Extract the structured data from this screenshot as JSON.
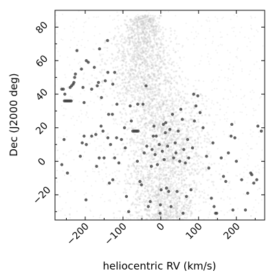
{
  "chart_data": {
    "type": "scatter",
    "title": "",
    "xlabel": "heliocentric RV (km/s)",
    "ylabel": "Dec (J2000 deg)",
    "xlim": [
      -280,
      275
    ],
    "ylim": [
      -35,
      90
    ],
    "xticks": [
      -200,
      -100,
      0,
      100,
      200
    ],
    "xtick_labels": [
      "−200",
      "−100",
      "0",
      "100",
      "200"
    ],
    "yticks": [
      -20,
      0,
      20,
      40,
      60,
      80
    ],
    "ytick_labels": [
      "−20",
      "0",
      "20",
      "40",
      "60",
      "80"
    ],
    "grid": false,
    "legend": "none",
    "background_density": {
      "color": "#bdbdbd",
      "description_of_points": "dense faint background distribution",
      "ridge": [
        {
          "dec": 85,
          "rv": -45,
          "width": 25
        },
        {
          "dec": 70,
          "rv": -50,
          "width": 45
        },
        {
          "dec": 55,
          "rv": -50,
          "width": 55
        },
        {
          "dec": 45,
          "rv": -35,
          "width": 60
        },
        {
          "dec": 35,
          "rv": -10,
          "width": 60
        },
        {
          "dec": 25,
          "rv": 5,
          "width": 60
        },
        {
          "dec": 15,
          "rv": 15,
          "width": 60
        },
        {
          "dec": 5,
          "rv": 10,
          "width": 65
        },
        {
          "dec": -5,
          "rv": 0,
          "width": 70
        },
        {
          "dec": -15,
          "rv": 5,
          "width": 65
        },
        {
          "dec": -25,
          "rv": 10,
          "width": 55
        },
        {
          "dec": -33,
          "rv": 10,
          "width": 45
        }
      ]
    },
    "series": [
      {
        "color": "#444444",
        "points": [
          [
            -262,
            43
          ],
          [
            -258,
            43
          ],
          [
            -255,
            36
          ],
          [
            -252,
            36
          ],
          [
            -249,
            36
          ],
          [
            -246,
            36
          ],
          [
            -243,
            36
          ],
          [
            -240,
            36
          ],
          [
            -237,
            36
          ],
          [
            -254,
            40
          ],
          [
            -240,
            44
          ],
          [
            -236,
            45
          ],
          [
            -232,
            46
          ],
          [
            -230,
            47
          ],
          [
            -226,
            52
          ],
          [
            -228,
            50
          ],
          [
            -222,
            66
          ],
          [
            -210,
            55
          ],
          [
            -203,
            35
          ],
          [
            -206,
            44
          ],
          [
            -192,
            59
          ],
          [
            -183,
            43
          ],
          [
            -176,
            56
          ],
          [
            -168,
            45
          ],
          [
            -165,
            47
          ],
          [
            -157,
            38
          ],
          [
            -147,
            48
          ],
          [
            -140,
            53
          ],
          [
            -127,
            46
          ],
          [
            -122,
            53
          ],
          [
            -162,
            67
          ],
          [
            -141,
            72
          ],
          [
            -197,
            60
          ],
          [
            -262,
            -2
          ],
          [
            -256,
            13
          ],
          [
            -247,
            -7
          ],
          [
            -213,
            3
          ],
          [
            -208,
            11
          ],
          [
            -203,
            15
          ],
          [
            -197,
            10
          ],
          [
            -198,
            -23
          ],
          [
            -183,
            15
          ],
          [
            -172,
            16
          ],
          [
            -170,
            -3
          ],
          [
            -163,
            2
          ],
          [
            -158,
            21
          ],
          [
            -153,
            18
          ],
          [
            -140,
            14
          ],
          [
            -138,
            28
          ],
          [
            -136,
            -13
          ],
          [
            -133,
            10
          ],
          [
            -128,
            28
          ],
          [
            -127,
            -11
          ],
          [
            -122,
            2
          ],
          [
            -116,
            34
          ],
          [
            -117,
            14
          ],
          [
            -111,
            -1
          ],
          [
            -104,
            13
          ],
          [
            -96,
            20
          ],
          [
            -94,
            8
          ],
          [
            -91,
            -21
          ],
          [
            -85,
            -30
          ],
          [
            -81,
            33
          ],
          [
            -78,
            24
          ],
          [
            -74,
            18
          ],
          [
            -71,
            18
          ],
          [
            -68,
            18
          ],
          [
            -65,
            18
          ],
          [
            -63,
            18
          ],
          [
            -60,
            18
          ],
          [
            -61,
            34
          ],
          [
            -62,
            0
          ],
          [
            -55,
            -12
          ],
          [
            -51,
            -14
          ],
          [
            -47,
            34
          ],
          [
            -44,
            5
          ],
          [
            -39,
            45
          ],
          [
            -37,
            9
          ],
          [
            -33,
            -27
          ],
          [
            -28,
            -24
          ],
          [
            -25,
            -3
          ],
          [
            -23,
            7
          ],
          [
            -20,
            15
          ],
          [
            -18,
            21
          ],
          [
            -15,
            4
          ],
          [
            -12,
            15
          ],
          [
            -9,
            -2
          ],
          [
            -4,
            10
          ],
          [
            -2,
            -31
          ],
          [
            -1,
            -26
          ],
          [
            1,
            -17
          ],
          [
            4,
            6
          ],
          [
            7,
            22
          ],
          [
            9,
            1
          ],
          [
            12,
            17
          ],
          [
            13,
            23
          ],
          [
            15,
            -16
          ],
          [
            18,
            9
          ],
          [
            21,
            -18
          ],
          [
            24,
            19
          ],
          [
            27,
            -27
          ],
          [
            31,
            28
          ],
          [
            34,
            2
          ],
          [
            38,
            11
          ],
          [
            40,
            5
          ],
          [
            43,
            -18
          ],
          [
            46,
            18
          ],
          [
            50,
            0
          ],
          [
            53,
            31
          ],
          [
            57,
            25
          ],
          [
            59,
            -31
          ],
          [
            61,
            7
          ],
          [
            65,
            -1
          ],
          [
            68,
            -21
          ],
          [
            71,
            13
          ],
          [
            74,
            2
          ],
          [
            80,
            -17
          ],
          [
            84,
            8
          ],
          [
            87,
            40
          ],
          [
            89,
            24
          ],
          [
            93,
            33
          ],
          [
            98,
            39
          ],
          [
            104,
            29
          ],
          [
            112,
            20
          ],
          [
            121,
            3
          ],
          [
            127,
            -4
          ],
          [
            134,
            -22
          ],
          [
            138,
            11
          ],
          [
            141,
            -27
          ],
          [
            145,
            -31
          ],
          [
            148,
            -31
          ],
          [
            160,
            2
          ],
          [
            166,
            -9
          ],
          [
            172,
            -12
          ],
          [
            179,
            5
          ],
          [
            186,
            15
          ],
          [
            188,
            22
          ],
          [
            191,
            -29
          ],
          [
            196,
            14
          ],
          [
            200,
            0
          ],
          [
            214,
            -11
          ],
          [
            224,
            -29
          ],
          [
            238,
            -7
          ],
          [
            241,
            -8
          ],
          [
            254,
            -11
          ],
          [
            257,
            21
          ],
          [
            266,
            18
          ],
          [
            246,
            -13
          ],
          [
            230,
            -19
          ],
          [
            -150,
            2
          ]
        ]
      }
    ]
  }
}
